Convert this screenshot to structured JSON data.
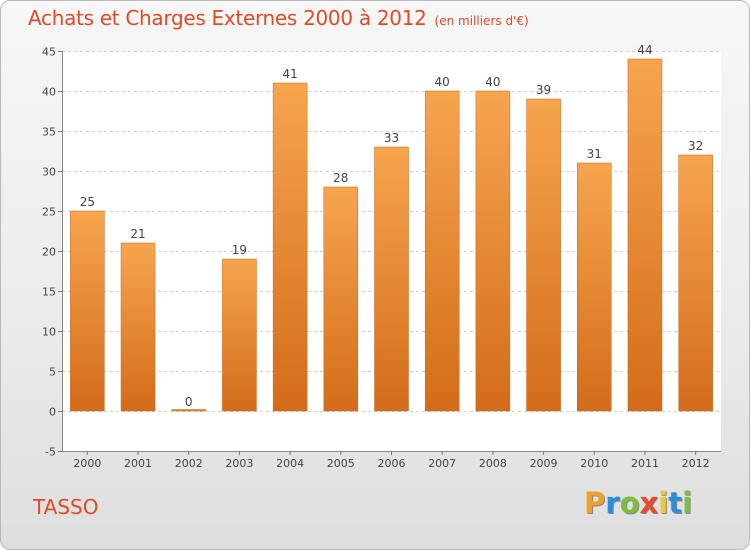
{
  "chart_data": {
    "type": "bar",
    "title": "Achats et Charges Externes 2000 à 2012",
    "subtitle": "(en milliers d'€)",
    "categories": [
      "2000",
      "2001",
      "2002",
      "2003",
      "2004",
      "2005",
      "2006",
      "2007",
      "2008",
      "2009",
      "2010",
      "2011",
      "2012"
    ],
    "values": [
      25,
      21,
      0,
      19,
      41,
      28,
      33,
      40,
      40,
      39,
      31,
      44,
      32
    ],
    "ylim": [
      -5,
      45
    ],
    "yticks": [
      -5,
      0,
      5,
      10,
      15,
      20,
      25,
      30,
      35,
      40,
      45
    ],
    "grid": true,
    "bar_color_top": "#f7a54f",
    "bar_color_bottom": "#d36c1a"
  },
  "footer": {
    "commune": "TASSO",
    "logo_letters": [
      "P",
      "r",
      "o",
      "x",
      "i",
      "t",
      "i"
    ],
    "logo_colors": [
      "#f0a12a",
      "#2c8fd6",
      "#7bbf3a",
      "#e94b2a",
      "#f0c92a",
      "#2c8fd6",
      "#7bbf3a"
    ]
  }
}
